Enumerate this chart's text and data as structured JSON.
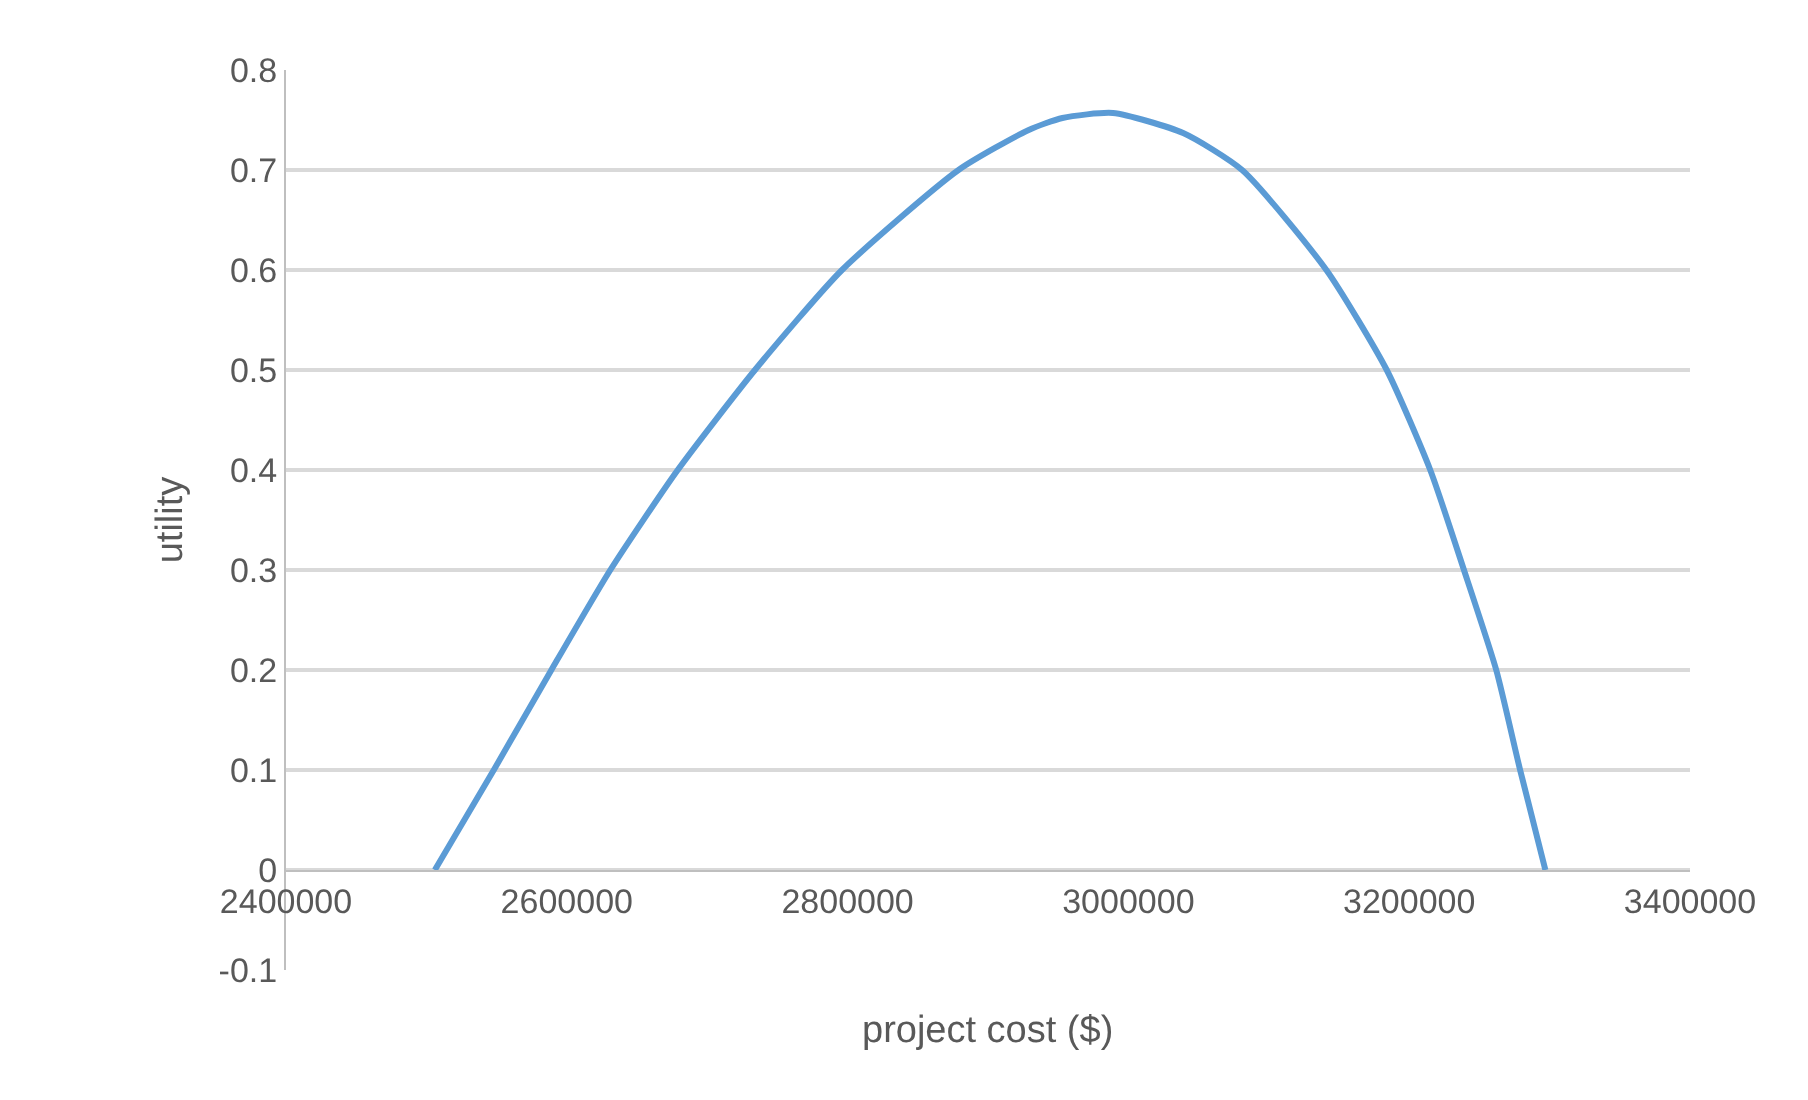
{
  "chart_data": {
    "type": "line",
    "xlabel": "project cost ($)",
    "ylabel": "utility",
    "x": [
      2506000,
      2548000,
      2589000,
      2631000,
      2679000,
      2734000,
      2796000,
      2879000,
      2929000,
      2953000,
      2989000,
      3039000,
      3081000,
      3141000,
      3184000,
      3215000,
      3239000,
      3262000,
      3279000,
      3297000
    ],
    "series": [
      {
        "color": "#5b9bd5",
        "values": [
          0,
          0.1,
          0.2,
          0.3,
          0.4,
          0.5,
          0.6,
          0.7,
          0.74,
          0.752,
          0.757,
          0.737,
          0.7,
          0.6,
          0.5,
          0.4,
          0.3,
          0.2,
          0.1,
          0
        ]
      }
    ],
    "xlim": [
      2400000,
      3400000
    ],
    "xticks": [
      2400000,
      2600000,
      2800000,
      3000000,
      3200000,
      3400000
    ],
    "ylim": [
      -0.1,
      0.8
    ],
    "yticks": [
      -0.1,
      0,
      0.1,
      0.2,
      0.3,
      0.4,
      0.5,
      0.6,
      0.7,
      0.8
    ],
    "grid": "y",
    "marker": "none",
    "line_style": "solid"
  }
}
